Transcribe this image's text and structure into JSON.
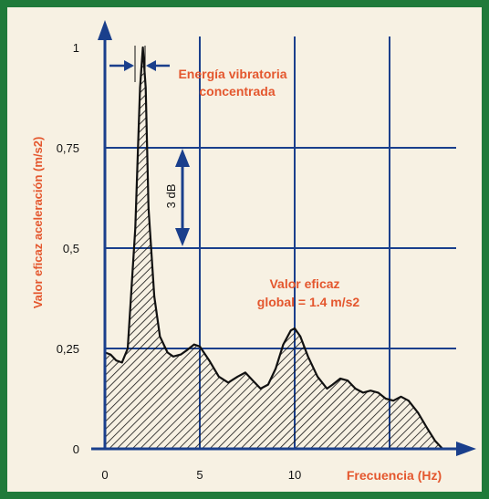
{
  "chart_data": {
    "type": "area",
    "title": "",
    "xlabel": "Frecuencia (Hz)",
    "ylabel": "Valor eficaz aceleración (m/s2)",
    "xlim": [
      0,
      18
    ],
    "ylim": [
      0,
      1
    ],
    "x_ticks": [
      {
        "value": 0,
        "label": "0"
      },
      {
        "value": 5,
        "label": "5"
      },
      {
        "value": 10,
        "label": "10"
      }
    ],
    "y_ticks": [
      {
        "value": 0,
        "label": "0"
      },
      {
        "value": 0.25,
        "label": "0,25"
      },
      {
        "value": 0.5,
        "label": "0,5"
      },
      {
        "value": 0.75,
        "label": "0,75"
      },
      {
        "value": 1,
        "label": "1"
      }
    ],
    "x_gridlines": [
      5,
      10,
      15
    ],
    "y_gridlines": [
      0.25,
      0.5,
      0.75
    ],
    "grid": true,
    "fill": "hatched",
    "series": [
      {
        "x": [
          0,
          0.3,
          0.6,
          0.9,
          1.2,
          1.6,
          1.85,
          2.0,
          2.15,
          2.3,
          2.6,
          2.9,
          3.3,
          3.6,
          4.0,
          4.3,
          4.7,
          5.0,
          5.5,
          6.0,
          6.5,
          7.0,
          7.4,
          7.8,
          8.2,
          8.6,
          9.0,
          9.4,
          9.8,
          10.0,
          10.3,
          10.7,
          11.2,
          11.7,
          12.0,
          12.4,
          12.8,
          13.2,
          13.6,
          14.0,
          14.4,
          14.8,
          15.2,
          15.6,
          16.0,
          16.5,
          17.0,
          17.4,
          17.8
        ],
        "values": [
          0.24,
          0.235,
          0.22,
          0.215,
          0.25,
          0.55,
          0.9,
          1.0,
          0.9,
          0.6,
          0.38,
          0.28,
          0.24,
          0.23,
          0.235,
          0.245,
          0.26,
          0.255,
          0.22,
          0.18,
          0.165,
          0.18,
          0.19,
          0.17,
          0.15,
          0.16,
          0.2,
          0.26,
          0.295,
          0.3,
          0.28,
          0.23,
          0.18,
          0.15,
          0.16,
          0.175,
          0.17,
          0.15,
          0.14,
          0.145,
          0.14,
          0.125,
          0.12,
          0.13,
          0.12,
          0.09,
          0.05,
          0.02,
          0.0
        ]
      }
    ],
    "annotations": {
      "peak_label": [
        "Energía vibratoria",
        "concentrada"
      ],
      "level_label": "3 dB",
      "global_label": [
        "Valor eficaz",
        "global = 1.4 m/s2"
      ]
    },
    "colors": {
      "frame": "#1f7a3a",
      "background": "#f7f1e3",
      "annotation": "#e4572e",
      "axis": "#1a3f8c",
      "data": "#111111"
    }
  }
}
